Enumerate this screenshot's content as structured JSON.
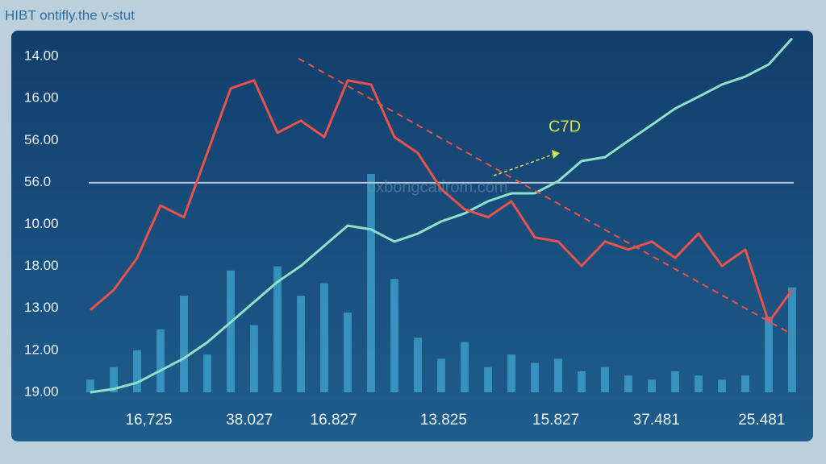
{
  "chart_data": {
    "type": "line",
    "title": "HIBT ontifly.the v-stut",
    "annotations": [
      "C7D",
      "oxbongcatirom.com"
    ],
    "x": [
      0,
      1,
      2,
      3,
      4,
      5,
      6,
      7,
      8,
      9,
      10,
      11,
      12,
      13,
      14,
      15,
      16,
      17,
      18,
      19,
      20,
      21,
      22,
      23,
      24,
      25,
      26,
      27,
      28,
      29,
      30
    ],
    "xlim": [
      0,
      30
    ],
    "xticks": [
      {
        "value": 2.5,
        "label": "16,725"
      },
      {
        "value": 6.8,
        "label": "38.027"
      },
      {
        "value": 10.4,
        "label": "16.827"
      },
      {
        "value": 15.1,
        "label": "13.825"
      },
      {
        "value": 19.9,
        "label": "15.827"
      },
      {
        "value": 24.2,
        "label": "37.481"
      },
      {
        "value": 28.7,
        "label": "25.481"
      }
    ],
    "ylim": [
      0,
      8.5
    ],
    "yticks": [
      {
        "value": 8,
        "label": "14.00"
      },
      {
        "value": 7,
        "label": "16.00"
      },
      {
        "value": 6,
        "label": "56.00"
      },
      {
        "value": 5,
        "label": "56.0"
      },
      {
        "value": 4,
        "label": "10.00"
      },
      {
        "value": 3,
        "label": "18.00"
      },
      {
        "value": 2,
        "label": "13.00"
      },
      {
        "value": 1,
        "label": "12.00"
      },
      {
        "value": 0,
        "label": "19.00"
      }
    ],
    "hline": 4.99,
    "trend": {
      "x": [
        8.9,
        30
      ],
      "values": [
        7.95,
        1.38
      ],
      "color": "#e8524a"
    },
    "series": [
      {
        "type": "bar",
        "color": "#3fa6d0",
        "values": [
          0.3,
          0.6,
          1.0,
          1.5,
          2.3,
          0.9,
          2.9,
          1.6,
          3.0,
          2.3,
          2.6,
          1.9,
          5.2,
          2.7,
          1.3,
          0.8,
          1.2,
          0.6,
          0.9,
          0.7,
          0.8,
          0.5,
          0.6,
          0.4,
          0.3,
          0.5,
          0.4,
          0.3,
          0.4,
          1.8,
          2.5
        ]
      },
      {
        "type": "line",
        "color": "#8fe0c8",
        "values": [
          0,
          0.08,
          0.23,
          0.52,
          0.81,
          1.19,
          1.67,
          2.15,
          2.63,
          3.01,
          3.49,
          3.97,
          3.88,
          3.59,
          3.78,
          4.07,
          4.26,
          4.55,
          4.74,
          4.74,
          5.03,
          5.51,
          5.6,
          5.99,
          6.37,
          6.76,
          7.04,
          7.33,
          7.52,
          7.81,
          8.43
        ]
      },
      {
        "type": "line",
        "color": "#e8524a",
        "values": [
          1.96,
          2.44,
          3.2,
          4.45,
          4.17,
          5.7,
          7.24,
          7.43,
          6.18,
          6.47,
          6.08,
          7.43,
          7.33,
          6.08,
          5.7,
          4.84,
          4.36,
          4.17,
          4.55,
          3.69,
          3.59,
          3.01,
          3.59,
          3.4,
          3.59,
          3.2,
          3.78,
          3.01,
          3.4,
          1.67,
          2.44
        ]
      }
    ]
  }
}
